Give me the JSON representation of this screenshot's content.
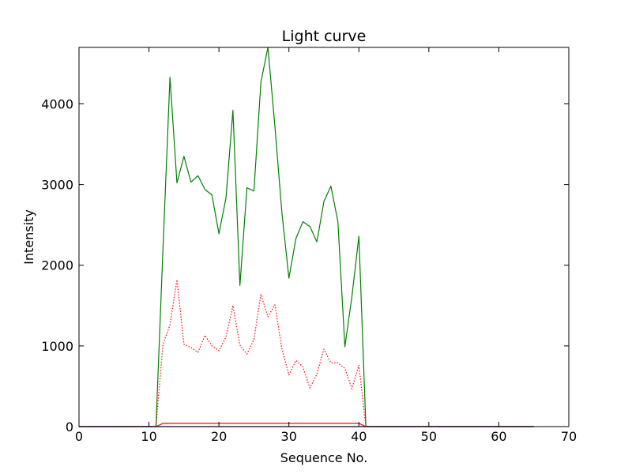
{
  "chart_data": {
    "type": "line",
    "title": "Light curve",
    "xlabel": "Sequence No.",
    "ylabel": "Intensity",
    "xlim": [
      0,
      70
    ],
    "ylim": [
      0,
      4700
    ],
    "xticks": [
      0,
      10,
      20,
      30,
      40,
      50,
      60,
      70
    ],
    "xtick_labels": [
      "0",
      "10",
      "20",
      "30",
      "40",
      "50",
      "60",
      "70"
    ],
    "yticks": [
      0,
      1000,
      2000,
      3000,
      4000
    ],
    "ytick_labels": [
      "0",
      "1000",
      "2000",
      "3000",
      "4000"
    ],
    "grid": false,
    "legend": "none",
    "series": [
      {
        "color": "#008000",
        "style": "solid",
        "x": [
          0,
          1,
          2,
          3,
          4,
          5,
          6,
          7,
          8,
          9,
          10,
          11,
          12,
          13,
          14,
          15,
          16,
          17,
          18,
          19,
          20,
          21,
          22,
          23,
          24,
          25,
          26,
          27,
          28,
          29,
          30,
          31,
          32,
          33,
          34,
          35,
          36,
          37,
          38,
          39,
          40,
          41,
          42,
          43,
          44,
          45,
          46,
          47,
          48,
          49,
          50,
          51,
          52,
          53,
          54,
          55,
          56,
          57,
          58,
          59,
          60,
          61,
          62,
          63,
          64,
          65
        ],
        "y": [
          0,
          0,
          0,
          0,
          0,
          0,
          0,
          0,
          0,
          0,
          0,
          0,
          2200,
          4330,
          3020,
          3350,
          3030,
          3110,
          2940,
          2870,
          2390,
          2830,
          3920,
          1750,
          2960,
          2920,
          4270,
          4700,
          3720,
          2650,
          1840,
          2330,
          2540,
          2480,
          2290,
          2790,
          2980,
          2540,
          990,
          1610,
          2360,
          0,
          0,
          0,
          0,
          0,
          0,
          0,
          0,
          0,
          0,
          0,
          0,
          0,
          0,
          0,
          0,
          0,
          0,
          0,
          0,
          0,
          0,
          0,
          0,
          0
        ]
      },
      {
        "color": "#ff0000",
        "style": "dotted",
        "x": [
          0,
          1,
          2,
          3,
          4,
          5,
          6,
          7,
          8,
          9,
          10,
          11,
          12,
          13,
          14,
          15,
          16,
          17,
          18,
          19,
          20,
          21,
          22,
          23,
          24,
          25,
          26,
          27,
          28,
          29,
          30,
          31,
          32,
          33,
          34,
          35,
          36,
          37,
          38,
          39,
          40,
          41,
          42,
          43,
          44,
          45,
          46,
          47,
          48,
          49,
          50,
          51,
          52,
          53,
          54,
          55,
          56,
          57,
          58,
          59,
          60,
          61,
          62,
          63,
          64,
          65
        ],
        "y": [
          0,
          0,
          0,
          0,
          0,
          0,
          0,
          0,
          0,
          0,
          0,
          0,
          1020,
          1260,
          1820,
          1020,
          980,
          920,
          1130,
          1000,
          940,
          1110,
          1500,
          1010,
          900,
          1080,
          1640,
          1360,
          1510,
          960,
          640,
          820,
          740,
          480,
          650,
          960,
          790,
          790,
          720,
          470,
          760,
          0,
          0,
          0,
          0,
          0,
          0,
          0,
          0,
          0,
          0,
          0,
          0,
          0,
          0,
          0,
          0,
          0,
          0,
          0,
          0,
          0,
          0,
          0,
          0,
          0
        ]
      },
      {
        "color": "#ff0000",
        "style": "solid",
        "x": [
          0,
          1,
          2,
          3,
          4,
          5,
          6,
          7,
          8,
          9,
          10,
          11,
          12,
          13,
          14,
          15,
          16,
          17,
          18,
          19,
          20,
          21,
          22,
          23,
          24,
          25,
          26,
          27,
          28,
          29,
          30,
          31,
          32,
          33,
          34,
          35,
          36,
          37,
          38,
          39,
          40,
          41,
          42,
          43,
          44,
          45,
          46,
          47,
          48,
          49,
          50,
          51,
          52,
          53,
          54,
          55,
          56,
          57,
          58,
          59,
          60,
          61,
          62,
          63,
          64,
          65
        ],
        "y": [
          0,
          0,
          0,
          0,
          0,
          0,
          0,
          0,
          0,
          0,
          0,
          0,
          40,
          40,
          40,
          40,
          40,
          40,
          40,
          40,
          40,
          40,
          40,
          40,
          40,
          40,
          40,
          40,
          40,
          40,
          40,
          40,
          40,
          40,
          40,
          40,
          40,
          40,
          40,
          40,
          40,
          0,
          0,
          0,
          0,
          0,
          0,
          0,
          0,
          0,
          0,
          0,
          0,
          0,
          0,
          0,
          0,
          0,
          0,
          0,
          0,
          0,
          0,
          0,
          0,
          0
        ]
      },
      {
        "color": "#0000ff",
        "style": "solid",
        "x": [
          0,
          1,
          2,
          3,
          4,
          5,
          6,
          7,
          8,
          9,
          10,
          11,
          12,
          13,
          14,
          15,
          16,
          17,
          18,
          19,
          20,
          21,
          22,
          23,
          24,
          25,
          26,
          27,
          28,
          29,
          30,
          31,
          32,
          33,
          34,
          35,
          36,
          37,
          38,
          39,
          40,
          41,
          42,
          43,
          44,
          45,
          46,
          47,
          48,
          49,
          50,
          51,
          52,
          53,
          54,
          55,
          56,
          57,
          58,
          59,
          60,
          61,
          62,
          63,
          64,
          65
        ],
        "y": [
          0,
          0,
          0,
          0,
          0,
          0,
          0,
          0,
          0,
          0,
          0,
          0,
          0,
          0,
          0,
          0,
          0,
          0,
          0,
          0,
          0,
          0,
          0,
          0,
          0,
          0,
          0,
          0,
          0,
          0,
          0,
          0,
          0,
          0,
          0,
          0,
          0,
          0,
          0,
          0,
          0,
          0,
          0,
          0,
          0,
          0,
          0,
          0,
          0,
          0,
          0,
          0,
          0,
          0,
          0,
          0,
          0,
          0,
          0,
          0,
          0,
          0,
          0,
          0,
          0,
          0
        ]
      }
    ]
  }
}
